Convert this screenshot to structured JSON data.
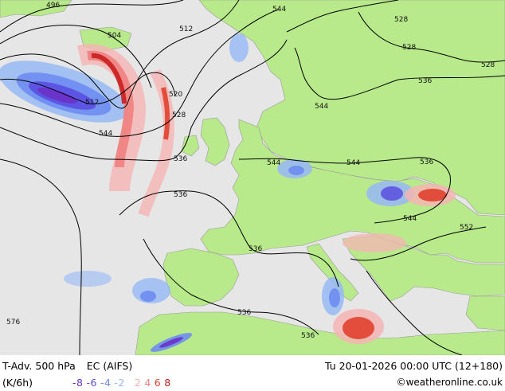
{
  "map": {
    "contour_labels": [
      "496",
      "504",
      "512",
      "512",
      "520",
      "528",
      "536",
      "536",
      "536",
      "536",
      "536",
      "536",
      "544",
      "544",
      "544",
      "544",
      "544",
      "544",
      "528",
      "528",
      "528",
      "536",
      "552",
      "576"
    ]
  },
  "footer": {
    "title": "T-Adv. 500 hPa",
    "model": "EC (AIFS)",
    "datetime": "Tu 20-01-2026 00:00 UTC (12+180)",
    "units": "(K/6h)",
    "credit": "©weatheronline.co.uk",
    "legend": [
      {
        "label": "-8",
        "color": "#6a32c8"
      },
      {
        "label": "-6",
        "color": "#5a4ee0"
      },
      {
        "label": "-4",
        "color": "#6e8cf0"
      },
      {
        "label": "-2",
        "color": "#96b9f5"
      },
      {
        "label": "2",
        "color": "#f5b4b4"
      },
      {
        "label": "4",
        "color": "#f08080"
      },
      {
        "label": "6",
        "color": "#e0402e"
      },
      {
        "label": "8",
        "color": "#c81e1e"
      }
    ]
  }
}
